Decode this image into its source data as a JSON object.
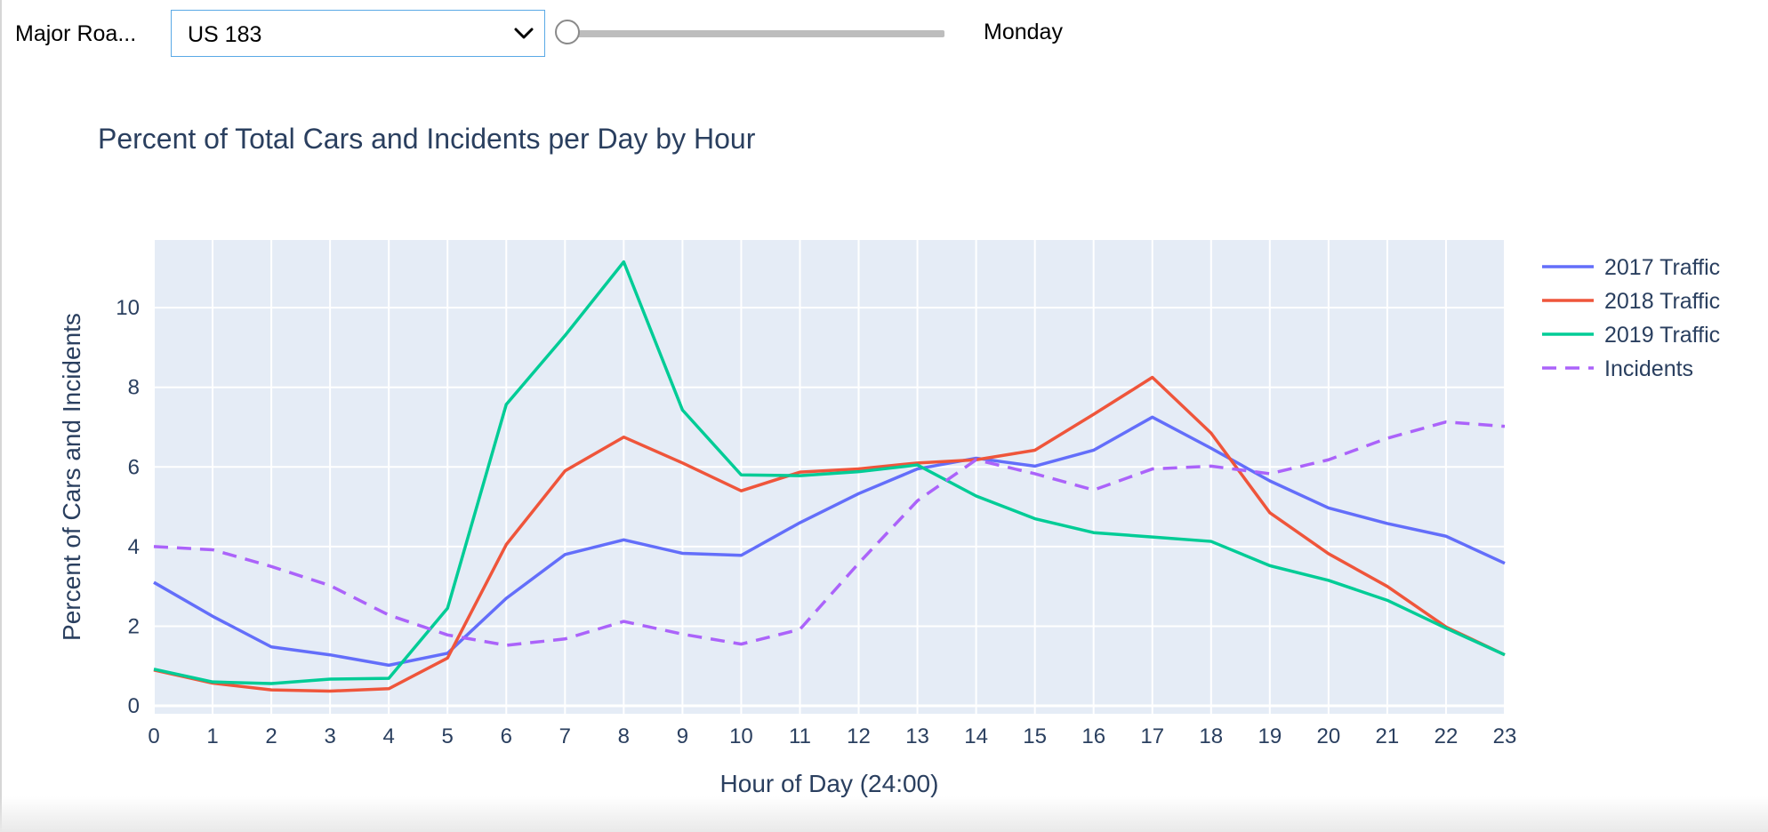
{
  "controls": {
    "road_label": "Major Roa...",
    "road_select_value": "US 183",
    "day_value": "Monday",
    "day_slider_position": 0
  },
  "chart_data": {
    "type": "line",
    "title": "Percent of Total Cars and Incidents per Day by Hour",
    "xlabel": "Hour of Day (24:00)",
    "ylabel": "Percent of Cars and Incidents",
    "xlim": [
      0,
      23
    ],
    "ylim": [
      -0.2,
      11.7
    ],
    "x_ticks": [
      0,
      1,
      2,
      3,
      4,
      5,
      6,
      7,
      8,
      9,
      10,
      11,
      12,
      13,
      14,
      15,
      16,
      17,
      18,
      19,
      20,
      21,
      22,
      23
    ],
    "y_ticks": [
      0,
      2,
      4,
      6,
      8,
      10
    ],
    "grid": true,
    "legend_position": "top-right",
    "plot_background": "#e5ecf6",
    "x": [
      0,
      1,
      2,
      3,
      4,
      5,
      6,
      7,
      8,
      9,
      10,
      11,
      12,
      13,
      14,
      15,
      16,
      17,
      18,
      19,
      20,
      21,
      22,
      23
    ],
    "series": [
      {
        "name": "2017 Traffic",
        "color": "#636efa",
        "dash": "solid",
        "values": [
          3.1,
          2.25,
          1.48,
          1.28,
          1.02,
          1.32,
          2.7,
          3.8,
          4.17,
          3.83,
          3.78,
          4.6,
          5.33,
          5.95,
          6.22,
          6.02,
          6.42,
          7.25,
          6.47,
          5.65,
          4.97,
          4.58,
          4.26,
          3.58
        ]
      },
      {
        "name": "2018 Traffic",
        "color": "#ef553b",
        "dash": "solid",
        "values": [
          0.9,
          0.57,
          0.4,
          0.37,
          0.43,
          1.2,
          4.05,
          5.9,
          6.75,
          6.1,
          5.4,
          5.87,
          5.95,
          6.1,
          6.18,
          6.42,
          7.32,
          8.25,
          6.85,
          4.85,
          3.82,
          3.0,
          1.98,
          1.28
        ]
      },
      {
        "name": "2019 Traffic",
        "color": "#00cc96",
        "dash": "solid",
        "values": [
          0.92,
          0.6,
          0.56,
          0.67,
          0.69,
          2.45,
          7.57,
          9.3,
          11.15,
          7.43,
          5.8,
          5.78,
          5.88,
          6.05,
          5.27,
          4.7,
          4.35,
          4.24,
          4.13,
          3.52,
          3.15,
          2.65,
          1.95,
          1.28
        ]
      },
      {
        "name": "Incidents",
        "color": "#ab63fa",
        "dash": "dash",
        "values": [
          4.0,
          3.92,
          3.5,
          3.02,
          2.28,
          1.78,
          1.52,
          1.68,
          2.12,
          1.8,
          1.55,
          1.92,
          3.58,
          5.15,
          6.18,
          5.83,
          5.42,
          5.95,
          6.02,
          5.83,
          6.18,
          6.72,
          7.13,
          7.02
        ]
      }
    ]
  }
}
